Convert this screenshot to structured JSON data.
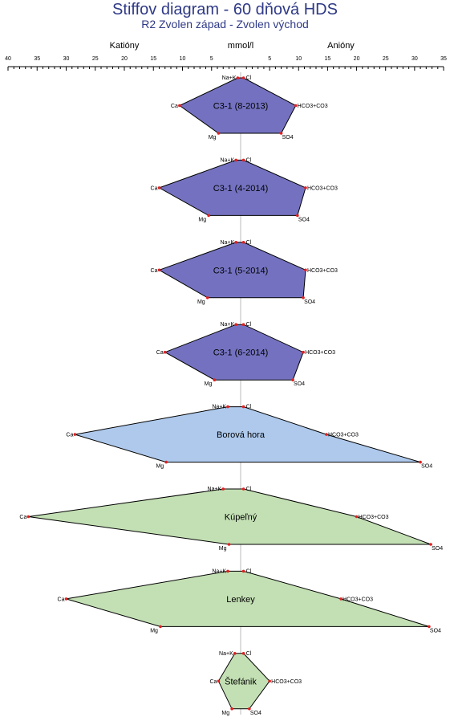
{
  "chart_data": {
    "type": "stiff",
    "title": "Stiffov diagram - 60 dňová HDS",
    "subtitle": "R2 Zvolen západ - Zvolen východ",
    "unit_label": "mmol/l",
    "left_label": "Katióny",
    "right_label": "Anióny",
    "cation_range": [
      0,
      40
    ],
    "anion_range": [
      0,
      35
    ],
    "cation_ticks": [
      40,
      35,
      30,
      25,
      20,
      15,
      10,
      5
    ],
    "anion_ticks": [
      5,
      10,
      15,
      20,
      25,
      30,
      35
    ],
    "ion_labels": {
      "na_k": "Na+K",
      "ca": "Ca",
      "mg": "Mg",
      "cl": "Cl",
      "hco3": "HCO3+CO3",
      "so4": "SO4"
    },
    "colors": {
      "purple": "#7472c0",
      "blue": "#aec9ec",
      "green": "#c3e0b4",
      "outline": "#000000",
      "point": "#e02020",
      "axis": "#bbbbbb"
    },
    "samples": [
      {
        "name": "C3-1 (8-2013)",
        "color": "#7472c0",
        "na_k": 0.5,
        "ca": 10.5,
        "mg": 3.8,
        "cl": 0.5,
        "hco3": 9.5,
        "so4": 7.0
      },
      {
        "name": "C3-1 (4-2014)",
        "color": "#7472c0",
        "na_k": 0.8,
        "ca": 14.0,
        "mg": 5.5,
        "cl": 0.5,
        "hco3": 11.2,
        "so4": 9.8
      },
      {
        "name": "C3-1 (5-2014)",
        "color": "#7472c0",
        "na_k": 0.8,
        "ca": 14.0,
        "mg": 5.7,
        "cl": 0.5,
        "hco3": 11.2,
        "so4": 10.8
      },
      {
        "name": "C3-1 (6-2014)",
        "color": "#7472c0",
        "na_k": 0.8,
        "ca": 13.0,
        "mg": 4.5,
        "cl": 0.5,
        "hco3": 10.8,
        "so4": 9.0
      },
      {
        "name": "Borová hora",
        "color": "#aec9ec",
        "na_k": 2.2,
        "ca": 28.5,
        "mg": 12.8,
        "cl": 0.5,
        "hco3": 14.8,
        "so4": 31.0
      },
      {
        "name": "Kúpeľný",
        "color": "#c3e0b4",
        "na_k": 3.0,
        "ca": 36.5,
        "mg": 2.0,
        "cl": 0.5,
        "hco3": 20.0,
        "so4": 32.8
      },
      {
        "name": "Lenkey",
        "color": "#c3e0b4",
        "na_k": 2.2,
        "ca": 30.0,
        "mg": 13.8,
        "cl": 0.5,
        "hco3": 17.3,
        "so4": 32.5
      },
      {
        "name": "Štefánik",
        "color": "#c3e0b4",
        "na_k": 1.0,
        "ca": 3.8,
        "mg": 1.5,
        "cl": 0.5,
        "hco3": 5.0,
        "so4": 1.5
      }
    ]
  }
}
